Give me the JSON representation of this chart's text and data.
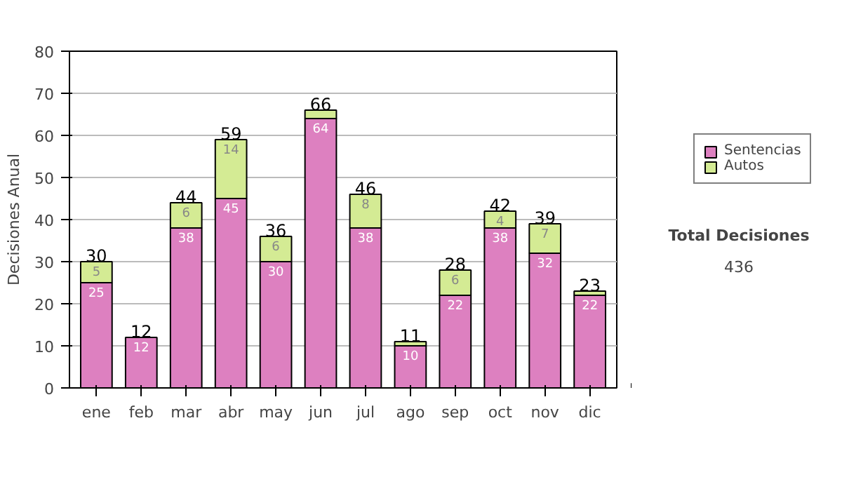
{
  "chart_data": {
    "type": "bar",
    "stacked": true,
    "ylabel": "Decisiones Anual",
    "categories": [
      "ene",
      "feb",
      "mar",
      "abr",
      "may",
      "jun",
      "jul",
      "ago",
      "sep",
      "oct",
      "nov",
      "dic"
    ],
    "series": [
      {
        "name": "Sentencias",
        "color": "#dd80c0",
        "values": [
          25,
          12,
          38,
          45,
          30,
          64,
          38,
          10,
          22,
          38,
          32,
          22
        ],
        "value_labels": [
          "25",
          "12",
          "38",
          "45",
          "30",
          "64",
          "38",
          "10",
          "22",
          "38",
          "32",
          "22"
        ]
      },
      {
        "name": "Autos",
        "color": "#d4eb94",
        "values": [
          5,
          0,
          6,
          14,
          6,
          2,
          8,
          1,
          6,
          4,
          7,
          1
        ],
        "value_labels": [
          "5",
          null,
          "6",
          "14",
          "6",
          null,
          "8",
          null,
          "6",
          "4",
          "7",
          null
        ]
      }
    ],
    "totals": [
      "30",
      "12",
      "44",
      "59",
      "36",
      "66",
      "46",
      "11",
      "28",
      "42",
      "39",
      "23"
    ],
    "ylim": [
      0,
      80
    ],
    "yticks": [
      0,
      10,
      20,
      30,
      40,
      50,
      60,
      70,
      80
    ],
    "grid": "y",
    "legend": "right",
    "annotations": [
      "Total Decisiones",
      "436"
    ]
  }
}
